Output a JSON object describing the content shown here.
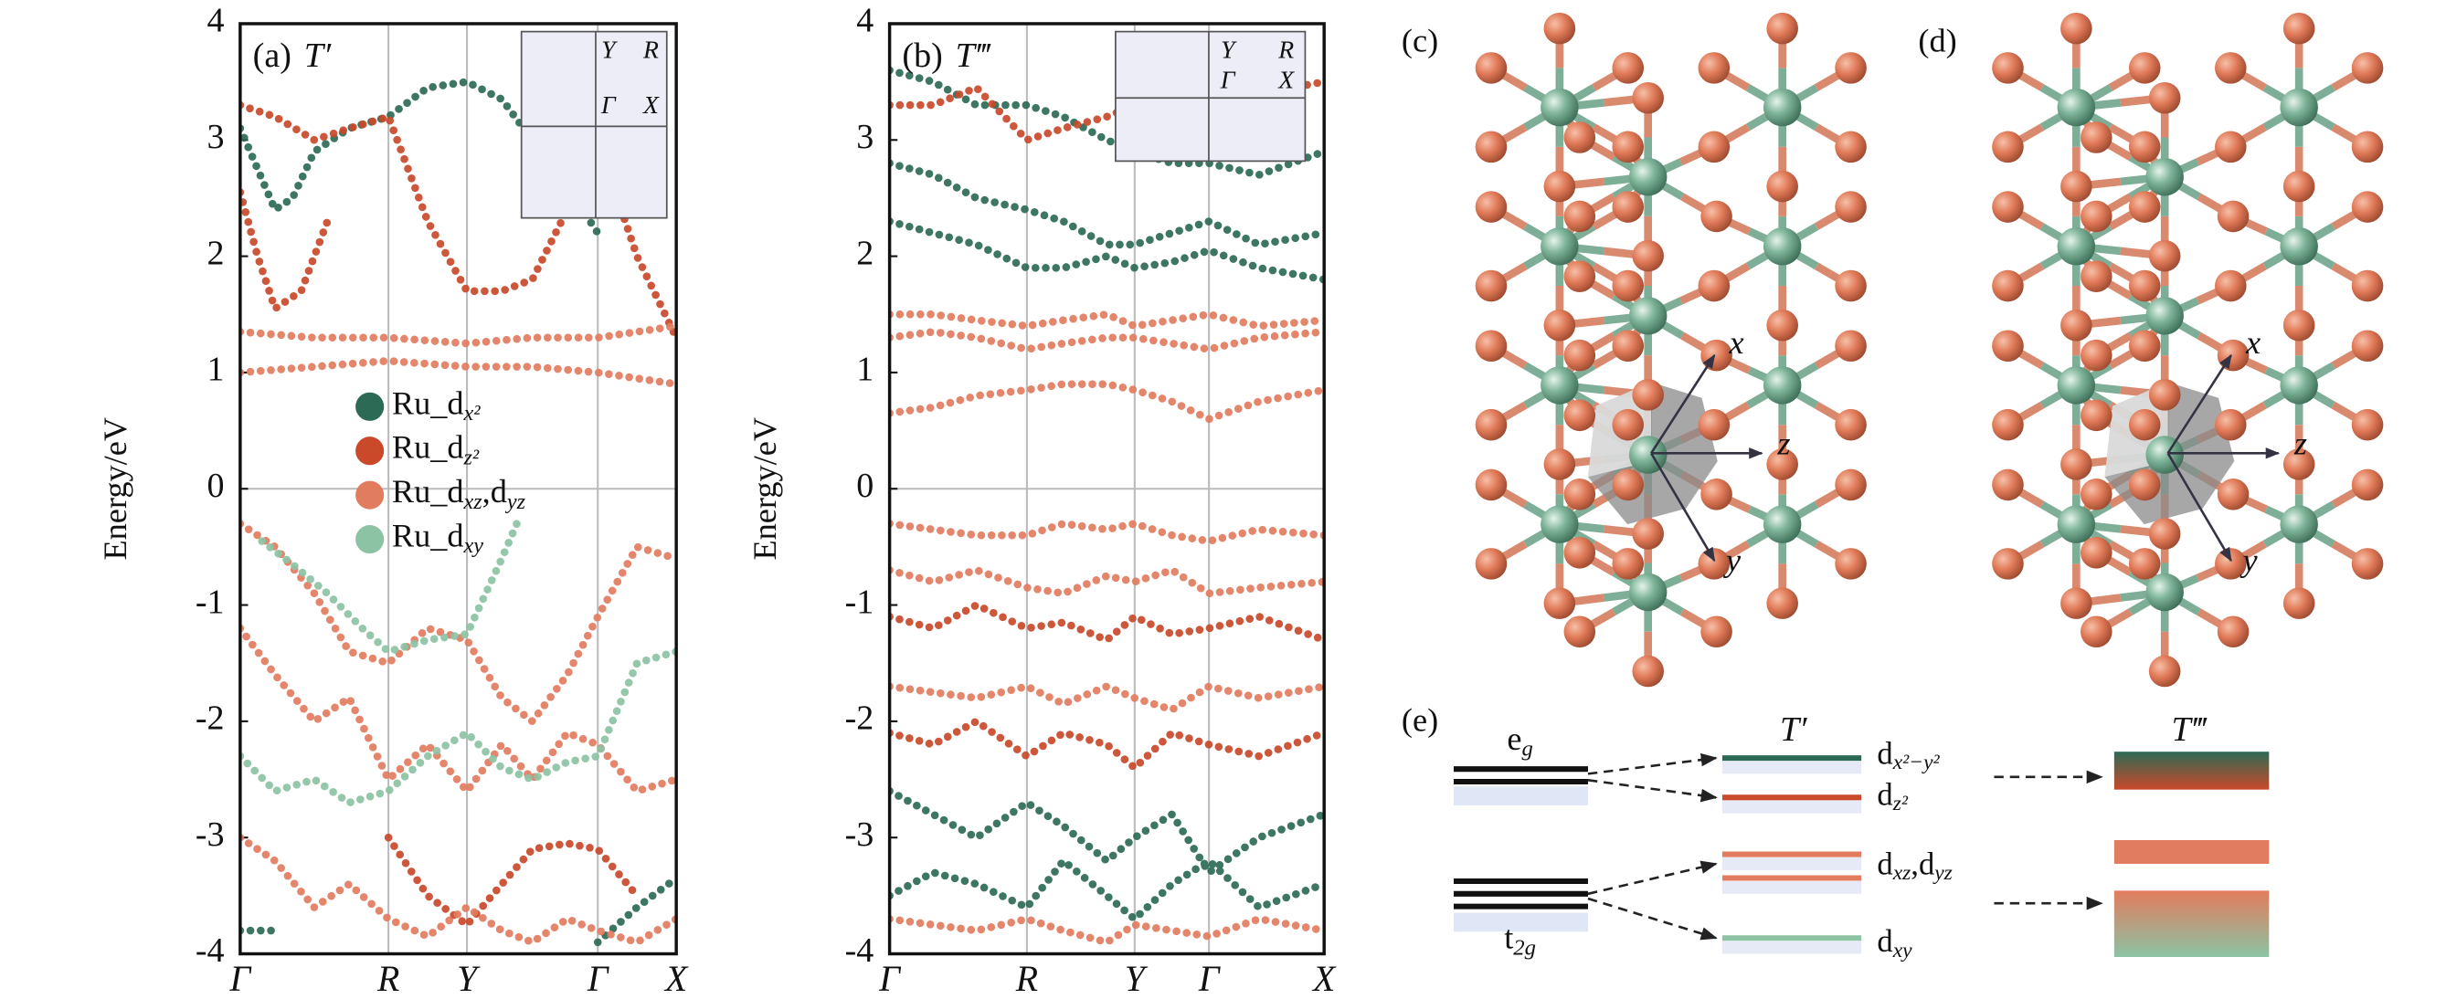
{
  "chart_data": [
    {
      "type": "line",
      "title": "(a)",
      "subtitle": "T′",
      "ylabel": "Energy/eV",
      "xlim": [
        0,
        1
      ],
      "ylim": [
        -4,
        4
      ],
      "yticks": [
        4,
        3,
        2,
        1,
        0,
        -1,
        -2,
        -3,
        -4
      ],
      "xticks": [
        {
          "value": 0,
          "label": "Γ"
        },
        {
          "value": 0.34,
          "label": "R"
        },
        {
          "value": 0.52,
          "label": "Y"
        },
        {
          "value": 0.82,
          "label": "Γ"
        },
        {
          "value": 1,
          "label": "X"
        }
      ],
      "grid": true,
      "hline": 0,
      "legend": "left",
      "annotations": [
        "Y",
        "R",
        "Γ",
        "X"
      ],
      "series": [
        {
          "name": "Ru_d",
          "sub": "x²",
          "color": "#2d6a55",
          "x": [
            0,
            0.04,
            0.08,
            0.12,
            0.17,
            0.25,
            0.34,
            0.43,
            0.52,
            0.6,
            0.67,
            0.75,
            0.82,
            null,
            0,
            0.08,
            null,
            0.82,
            0.91,
            1
          ],
          "values": [
            3.1,
            2.75,
            2.4,
            2.5,
            2.9,
            3.1,
            3.2,
            3.45,
            3.5,
            3.35,
            3.0,
            2.6,
            2.2,
            null,
            -3.8,
            -3.8,
            null,
            -3.9,
            -3.6,
            -3.35
          ]
        },
        {
          "name": "Ru_d",
          "sub": "z²",
          "color": "#c9492a",
          "x": [
            0,
            0.08,
            0.17,
            0.25,
            0.34,
            0.43,
            0.52,
            0.6,
            0.67,
            0.75,
            0.82,
            0.91,
            1,
            null,
            0,
            0.04,
            0.08,
            0.14,
            0.2,
            null,
            0.34,
            0.43,
            0.52,
            0.6,
            0.67,
            0.75,
            0.82,
            0.91
          ],
          "values": [
            3.3,
            3.2,
            3.0,
            3.1,
            3.2,
            2.3,
            1.7,
            1.7,
            1.8,
            2.4,
            3.0,
            2.0,
            1.3,
            null,
            2.55,
            2.0,
            1.55,
            1.7,
            2.3,
            null,
            -3.0,
            -3.5,
            -3.75,
            -3.4,
            -3.1,
            -3.05,
            -3.1,
            -3.5
          ]
        },
        {
          "name": "Ru_d",
          "sub": "xz",
          "name2": ",d",
          "sub2": "yz",
          "color": "#e27c5e",
          "x": [
            0,
            0.17,
            0.34,
            0.52,
            0.67,
            0.82,
            1,
            null,
            0,
            0.17,
            0.34,
            0.52,
            0.67,
            0.82,
            1,
            null,
            0,
            0.08,
            0.17,
            0.25,
            0.34,
            0.43,
            0.52,
            0.6,
            0.67,
            0.75,
            0.82,
            0.91,
            1,
            null,
            0,
            0.08,
            0.17,
            0.25,
            0.34,
            0.43,
            0.52,
            0.6,
            0.67,
            0.75,
            0.82,
            0.91,
            1,
            null,
            0,
            0.08,
            0.17,
            0.25,
            0.34,
            0.43,
            0.52,
            0.6,
            0.67,
            0.75,
            0.82,
            0.91,
            1
          ],
          "values": [
            1.35,
            1.3,
            1.3,
            1.25,
            1.3,
            1.3,
            1.4,
            null,
            1.0,
            1.05,
            1.1,
            1.05,
            1.05,
            1.0,
            0.9,
            null,
            -0.3,
            -0.5,
            -0.9,
            -1.4,
            -1.5,
            -1.2,
            -1.3,
            -1.8,
            -2.0,
            -1.6,
            -1.1,
            -0.5,
            -0.6,
            null,
            -1.2,
            -1.6,
            -2.0,
            -1.8,
            -2.5,
            -2.2,
            -2.6,
            -2.2,
            -2.5,
            -2.1,
            -2.2,
            -2.6,
            -2.5,
            null,
            -3.0,
            -3.2,
            -3.6,
            -3.4,
            -3.7,
            -3.85,
            -3.6,
            -3.8,
            -3.9,
            -3.7,
            -3.8,
            -3.9,
            -3.7
          ]
        },
        {
          "name": "Ru_d",
          "sub": "xy",
          "color": "#8cc3a4",
          "x": [
            0.05,
            0.12,
            0.2,
            0.28,
            0.34,
            0.43,
            0.52,
            0.6,
            0.64,
            null,
            0,
            0.08,
            0.17,
            0.25,
            0.34,
            0.43,
            0.52,
            0.6,
            0.67,
            0.75,
            0.82,
            0.91,
            1
          ],
          "values": [
            -0.45,
            -0.65,
            -0.9,
            -1.2,
            -1.4,
            -1.3,
            -1.25,
            -0.6,
            -0.25,
            null,
            -2.3,
            -2.6,
            -2.5,
            -2.7,
            -2.6,
            -2.3,
            -2.1,
            -2.4,
            -2.5,
            -2.35,
            -2.3,
            -1.5,
            -1.4
          ]
        }
      ]
    },
    {
      "type": "line",
      "title": "(b)",
      "subtitle": "T‴",
      "ylabel": "Energy/eV",
      "xlim": [
        0,
        1
      ],
      "ylim": [
        -4,
        4
      ],
      "yticks": [
        4,
        3,
        2,
        1,
        0,
        -1,
        -2,
        -3,
        -4
      ],
      "xticks": [
        {
          "value": 0,
          "label": "Γ"
        },
        {
          "value": 0.316,
          "label": "R"
        },
        {
          "value": 0.564,
          "label": "Y"
        },
        {
          "value": 0.735,
          "label": "Γ"
        },
        {
          "value": 1,
          "label": "X"
        }
      ],
      "grid": true,
      "hline": 0,
      "annotations": [
        "Y",
        "R",
        "Γ",
        "X"
      ],
      "series": [
        {
          "color": "#2d6a55",
          "x": [
            0,
            0.1,
            0.2,
            0.316,
            0.4,
            0.5,
            0.564,
            0.65,
            0.735,
            0.85,
            1,
            null,
            0,
            0.1,
            0.2,
            0.316,
            0.4,
            0.5,
            0.564,
            0.65,
            0.735,
            0.85,
            1,
            null,
            0,
            0.1,
            0.2,
            0.316,
            0.4,
            0.5,
            0.564,
            0.65,
            0.735,
            0.85,
            1,
            null,
            0,
            0.1,
            0.2,
            0.316,
            0.4,
            0.5,
            0.564,
            0.65,
            0.735,
            0.85,
            1,
            null,
            0,
            0.1,
            0.2,
            0.316,
            0.4,
            0.5,
            0.564,
            0.65,
            0.735,
            0.85,
            1
          ],
          "values": [
            3.6,
            3.5,
            3.3,
            3.3,
            3.2,
            3.0,
            2.9,
            2.8,
            2.8,
            2.7,
            2.9,
            null,
            2.8,
            2.7,
            2.5,
            2.4,
            2.3,
            2.1,
            2.1,
            2.2,
            2.3,
            2.1,
            2.2,
            null,
            2.3,
            2.2,
            2.1,
            1.9,
            1.9,
            2.0,
            1.9,
            1.95,
            2.05,
            1.9,
            1.8,
            null,
            -2.6,
            -2.8,
            -3.0,
            -2.7,
            -2.9,
            -3.2,
            -3.0,
            -2.8,
            -3.3,
            -3.0,
            -2.8,
            null,
            -3.5,
            -3.3,
            -3.4,
            -3.6,
            -3.2,
            -3.5,
            -3.7,
            -3.4,
            -3.2,
            -3.6,
            -3.4
          ]
        },
        {
          "color": "#c9492a",
          "x": [
            0,
            0.1,
            0.2,
            0.316,
            0.4,
            0.5,
            0.564,
            0.65,
            0.735,
            0.85,
            1,
            null,
            0,
            0.1,
            0.2,
            0.316,
            0.4,
            0.5,
            0.564,
            0.65,
            0.735,
            0.85,
            1,
            null,
            0,
            0.1,
            0.2,
            0.316,
            0.4,
            0.5,
            0.564,
            0.65,
            0.735,
            0.85,
            1
          ],
          "values": [
            3.3,
            3.3,
            3.45,
            3.0,
            3.1,
            3.2,
            3.3,
            3.25,
            3.3,
            3.4,
            3.5,
            null,
            -1.1,
            -1.2,
            -1.0,
            -1.2,
            -1.15,
            -1.3,
            -1.1,
            -1.25,
            -1.2,
            -1.1,
            -1.3,
            null,
            -2.1,
            -2.2,
            -2.0,
            -2.3,
            -2.1,
            -2.2,
            -2.4,
            -2.1,
            -2.2,
            -2.3,
            -2.1
          ]
        },
        {
          "color": "#e27c5e",
          "x": [
            0,
            0.1,
            0.2,
            0.316,
            0.4,
            0.5,
            0.564,
            0.65,
            0.735,
            0.85,
            1,
            null,
            0,
            0.1,
            0.2,
            0.316,
            0.4,
            0.5,
            0.564,
            0.65,
            0.735,
            0.85,
            1,
            null,
            0,
            0.1,
            0.2,
            0.316,
            0.4,
            0.5,
            0.564,
            0.65,
            0.735,
            0.85,
            1,
            null,
            0,
            0.1,
            0.2,
            0.316,
            0.4,
            0.5,
            0.564,
            0.65,
            0.735,
            0.85,
            1,
            null,
            0,
            0.1,
            0.2,
            0.316,
            0.4,
            0.5,
            0.564,
            0.65,
            0.735,
            0.85,
            1,
            null,
            0,
            0.1,
            0.2,
            0.316,
            0.4,
            0.5,
            0.564,
            0.65,
            0.735,
            0.85,
            1,
            null,
            0,
            0.1,
            0.2,
            0.316,
            0.4,
            0.5,
            0.564,
            0.65,
            0.735,
            0.85,
            1
          ],
          "values": [
            1.5,
            1.5,
            1.45,
            1.4,
            1.45,
            1.5,
            1.4,
            1.45,
            1.5,
            1.4,
            1.45,
            null,
            1.3,
            1.35,
            1.3,
            1.2,
            1.25,
            1.3,
            1.3,
            1.25,
            1.2,
            1.3,
            1.35,
            null,
            0.65,
            0.7,
            0.8,
            0.85,
            0.9,
            0.9,
            0.85,
            0.75,
            0.6,
            0.75,
            0.85,
            null,
            -0.3,
            -0.35,
            -0.4,
            -0.4,
            -0.3,
            -0.35,
            -0.3,
            -0.4,
            -0.45,
            -0.35,
            -0.4,
            null,
            -0.7,
            -0.8,
            -0.7,
            -0.85,
            -0.9,
            -0.75,
            -0.8,
            -0.7,
            -0.9,
            -0.85,
            -0.8,
            null,
            -1.7,
            -1.75,
            -1.8,
            -1.7,
            -1.85,
            -1.7,
            -1.8,
            -1.9,
            -1.7,
            -1.8,
            -1.7,
            null,
            -3.7,
            -3.75,
            -3.8,
            -3.7,
            -3.8,
            -3.9,
            -3.75,
            -3.8,
            -3.85,
            -3.7,
            -3.8
          ]
        }
      ]
    }
  ],
  "panel_c": {
    "label": "(c)",
    "axes": [
      "x",
      "z",
      "y"
    ]
  },
  "panel_d": {
    "label": "(d)",
    "axes": [
      "x",
      "z",
      "y"
    ]
  },
  "panel_e": {
    "label": "(e)",
    "eg": [
      "e",
      "g"
    ],
    "t2g": [
      "t",
      "2g"
    ],
    "phases": [
      "T′",
      "T‴"
    ],
    "levels": [
      [
        "d",
        "x²−y²"
      ],
      [
        "d",
        "z²"
      ],
      [
        "d",
        "xz",
        ",d",
        "yz"
      ],
      [
        "d",
        "xy"
      ]
    ]
  }
}
